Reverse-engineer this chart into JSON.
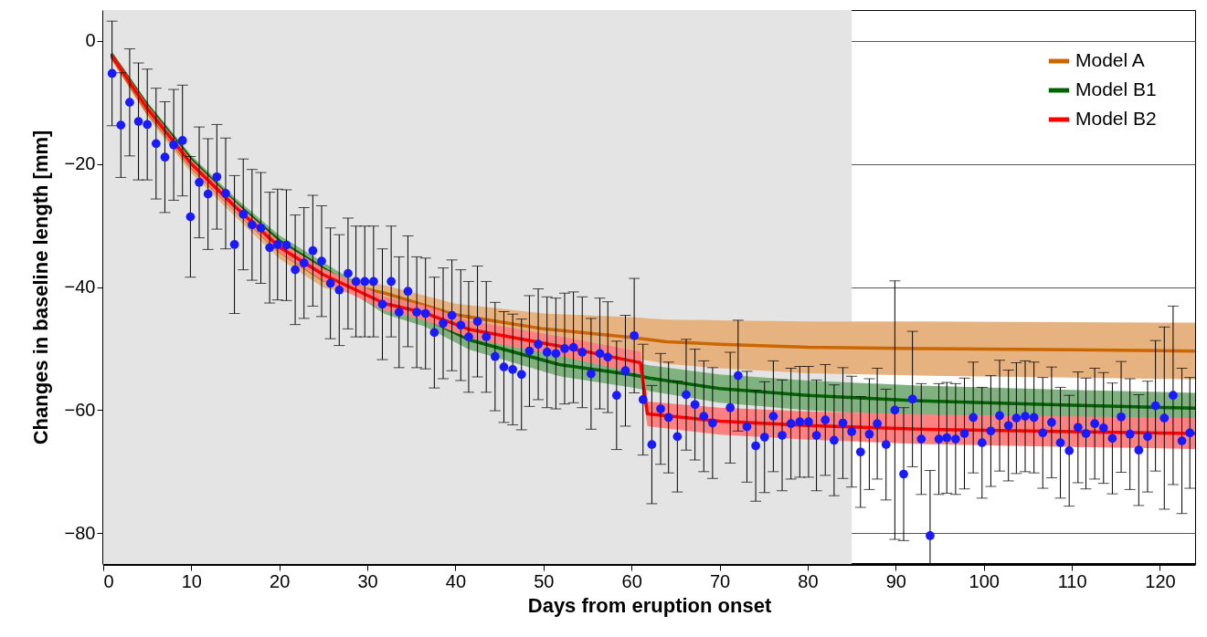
{
  "chart_data": {
    "type": "line",
    "xlabel": "Days from eruption onset",
    "ylabel": "Changes in baseline length [mm]",
    "xlim": [
      0,
      124
    ],
    "ylim": [
      -85,
      5
    ],
    "xticks": [
      0,
      10,
      20,
      30,
      40,
      50,
      60,
      70,
      80,
      90,
      100,
      110,
      120
    ],
    "yticks": [
      -80,
      -60,
      -40,
      -20,
      0
    ],
    "grid": "y",
    "legend": "top right",
    "line_style": "solid",
    "bands": [
      {
        "axis": "x",
        "from": 0,
        "to": 85,
        "color": "#e4e4e4"
      }
    ],
    "series": [
      {
        "name": "Model A",
        "color": "#cc6600",
        "x": [
          1,
          5,
          10,
          15,
          20,
          25,
          32,
          40,
          50,
          60,
          64,
          70,
          80,
          92.7,
          110,
          124
        ],
        "values": [
          -2.7,
          -11.5,
          -20.5,
          -27.5,
          -34.2,
          -38.9,
          -41,
          -44.5,
          -46.8,
          -48.2,
          -48.9,
          -49.3,
          -49.8,
          -50,
          -50.2,
          -50.4
        ],
        "lower": [
          -3.2,
          -12.3,
          -21.5,
          -28.6,
          -35.4,
          -40.1,
          -42.3,
          -46.3,
          -49.3,
          -51.5,
          -52.5,
          -53.2,
          -54,
          -54.4,
          -54.7,
          -55
        ],
        "upper": [
          -2.2,
          -10.7,
          -19.5,
          -26.4,
          -33,
          -37.7,
          -39.7,
          -42.7,
          -44.3,
          -44.9,
          -45.3,
          -45.4,
          -45.6,
          -45.6,
          -45.7,
          -45.8
        ]
      },
      {
        "name": "Model B1",
        "color": "#006400",
        "x": [
          1,
          5,
          10,
          15,
          20,
          25,
          32,
          36.5,
          41.6,
          51.8,
          60.3,
          62,
          70,
          80,
          92.7,
          110,
          124
        ],
        "values": [
          -2.3,
          -10.5,
          -19.3,
          -26.3,
          -32.5,
          -37,
          -43.2,
          -45,
          -48.6,
          -52.6,
          -54.3,
          -54.8,
          -56.5,
          -57.6,
          -58.5,
          -59.2,
          -59.7
        ],
        "lower": [
          -2.8,
          -11.1,
          -20,
          -27.1,
          -33.4,
          -38,
          -44.4,
          -46.4,
          -50.2,
          -54.5,
          -56.4,
          -56.9,
          -58.8,
          -60,
          -61,
          -61.7,
          -62.2
        ],
        "upper": [
          -1.8,
          -9.9,
          -18.6,
          -25.5,
          -31.6,
          -36,
          -42,
          -43.6,
          -47,
          -50.7,
          -52.2,
          -52.7,
          -54.2,
          -55.2,
          -56,
          -56.7,
          -57.2
        ]
      },
      {
        "name": "Model B2",
        "color": "#ff0000",
        "x": [
          1,
          5,
          10,
          15,
          20,
          25,
          32,
          36.5,
          41.6,
          51.8,
          60.3,
          61,
          61.8,
          70,
          80,
          92.7,
          110,
          124
        ],
        "values": [
          -2.5,
          -11,
          -20,
          -27,
          -33.5,
          -38,
          -42.7,
          -44.2,
          -46.9,
          -49.6,
          -52.1,
          -52.3,
          -60.6,
          -61.8,
          -62.5,
          -63.1,
          -63.5,
          -63.8
        ],
        "lower": [
          -3,
          -11.6,
          -20.7,
          -27.8,
          -34.4,
          -39,
          -43.8,
          -45.4,
          -48.3,
          -51.2,
          -53.9,
          -54.1,
          -62.6,
          -64,
          -64.8,
          -65.5,
          -66,
          -66.3
        ],
        "upper": [
          -2,
          -10.4,
          -19.3,
          -26.2,
          -32.6,
          -37,
          -41.6,
          -43,
          -45.5,
          -48,
          -50.3,
          -50.5,
          -58.6,
          -59.6,
          -60.2,
          -60.7,
          -61,
          -61.3
        ]
      },
      {
        "type": "scatter",
        "color": "#1a1aff",
        "marker": "circle",
        "x": [
          1,
          2,
          3,
          4,
          5,
          6,
          7,
          8,
          9,
          9.9,
          10.9,
          11.9,
          12.9,
          13.9,
          14.9,
          15.9,
          16.9,
          17.9,
          18.9,
          19.8,
          20.8,
          21.8,
          22.8,
          23.8,
          24.8,
          25.8,
          26.8,
          27.8,
          28.7,
          29.7,
          30.7,
          31.7,
          32.7,
          33.6,
          34.6,
          35.6,
          36.6,
          37.6,
          38.6,
          39.6,
          40.6,
          41.5,
          42.5,
          43.5,
          44.5,
          45.5,
          46.5,
          47.5,
          48.4,
          49.4,
          50.4,
          51.4,
          52.4,
          53.4,
          54.4,
          55.4,
          56.4,
          57.3,
          58.3,
          59.3,
          60.3,
          61.3,
          62.3,
          63.3,
          64.2,
          65.2,
          66.2,
          67.2,
          68.2,
          69.2,
          71.2,
          72.1,
          73.1,
          74.1,
          75.1,
          76.1,
          77.1,
          78.1,
          79.1,
          80.1,
          81,
          82,
          83,
          84,
          85,
          86,
          87,
          87.9,
          88.9,
          89.9,
          90.9,
          91.9,
          92.9,
          93.9,
          94.9,
          95.8,
          96.8,
          97.8,
          98.8,
          99.8,
          100.8,
          101.8,
          102.8,
          103.7,
          104.7,
          105.7,
          106.7,
          107.7,
          108.7,
          109.7,
          110.7,
          111.6,
          112.6,
          113.6,
          114.6,
          115.6,
          116.6,
          117.6,
          118.6,
          119.5,
          120.5,
          121.5,
          122.5,
          123.4
        ],
        "values": [
          -5.3,
          -13.7,
          -10,
          -13.1,
          -13.6,
          -16.7,
          -18.9,
          -16.9,
          -16.2,
          -28.6,
          -23,
          -24.9,
          -22.1,
          -24.8,
          -33.1,
          -28.2,
          -29.9,
          -30.4,
          -33.6,
          -33.1,
          -33.2,
          -37.2,
          -36.1,
          -34.1,
          -35.8,
          -39.4,
          -40.5,
          -37.8,
          -39.1,
          -39.1,
          -39.1,
          -42.8,
          -39.1,
          -44.1,
          -40.7,
          -44.1,
          -44.3,
          -47.4,
          -45.9,
          -44.6,
          -46.2,
          -48.1,
          -45.6,
          -48.1,
          -51.3,
          -53,
          -53.4,
          -54.2,
          -50.4,
          -49.3,
          -50.6,
          -50.8,
          -50,
          -49.8,
          -50.6,
          -54.1,
          -50.8,
          -51.4,
          -57.6,
          -53.6,
          -47.9,
          -58.3,
          -65.6,
          -59.8,
          -61.2,
          -64.3,
          -57.5,
          -59.1,
          -61,
          -62.1,
          -59.6,
          -54.4,
          -62.7,
          -65.8,
          -64.4,
          -61,
          -64.1,
          -62.2,
          -61.9,
          -61.9,
          -64.1,
          -61.6,
          -64.9,
          -62.1,
          -63.5,
          -66.8,
          -63.9,
          -62.2,
          -65.6,
          -60,
          -70.4,
          -58.2,
          -64.7,
          -80.4,
          -64.7,
          -64.5,
          -64.7,
          -63.8,
          -61.2,
          -65.3,
          -63.4,
          -60.9,
          -62.5,
          -61.3,
          -61,
          -61.2,
          -63.7,
          -62,
          -65.3,
          -66.6,
          -62.8,
          -63.8,
          -62.2,
          -62.9,
          -64.6,
          -61.1,
          -63.9,
          -66.5,
          -64.3,
          -59.3,
          -61.3,
          -57.6,
          -65,
          -63.7
        ],
        "errors": [
          8.5,
          8.5,
          8.7,
          9.5,
          9,
          9,
          9,
          9,
          9,
          9.8,
          9,
          9,
          8.5,
          9,
          11.2,
          9,
          9,
          9,
          9,
          9,
          9,
          8.9,
          9,
          9,
          9,
          9,
          9,
          9,
          9,
          9,
          9,
          9,
          9,
          9,
          9,
          9,
          9,
          9,
          9,
          9,
          9,
          9,
          9,
          9,
          8.8,
          9,
          9,
          9,
          9,
          9,
          9,
          9,
          9,
          9,
          9,
          9,
          9,
          9,
          8.8,
          9,
          9.3,
          9,
          9.6,
          9,
          9,
          9,
          9,
          9,
          9,
          9,
          9,
          9,
          9,
          9,
          9,
          9,
          9,
          9,
          9,
          9,
          9,
          9,
          9,
          9,
          9,
          9,
          9,
          9,
          9,
          21,
          10.8,
          11,
          9,
          10.6,
          9,
          9,
          9,
          9,
          9,
          9,
          9,
          9,
          9,
          9,
          9,
          9,
          9,
          9,
          9,
          9,
          9,
          9,
          9,
          9,
          9,
          9,
          9,
          9,
          9,
          10.6,
          14.8,
          14.5,
          11.8,
          9
        ]
      }
    ]
  }
}
